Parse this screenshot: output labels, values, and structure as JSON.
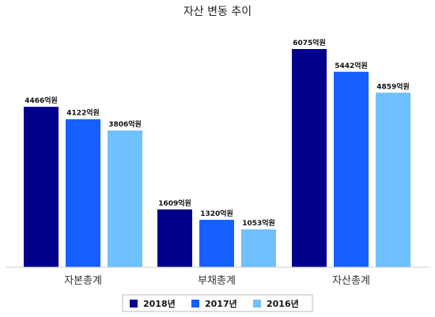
{
  "chart_data": {
    "type": "bar",
    "title": "자산 변동 추이",
    "categories": [
      "자본총계",
      "부채총계",
      "자산총계"
    ],
    "series": [
      {
        "name": "2018년",
        "values": [
          4466,
          1609,
          6075
        ],
        "labels": [
          "4466억원",
          "1609억원",
          "6075억원"
        ],
        "color": "#00008b"
      },
      {
        "name": "2017년",
        "values": [
          4122,
          1320,
          5442
        ],
        "labels": [
          "4122억원",
          "1320억원",
          "5442억원"
        ],
        "color": "#1560ff"
      },
      {
        "name": "2016년",
        "values": [
          3806,
          1053,
          4859
        ],
        "labels": [
          "3806억원",
          "1053억원",
          "4859억원"
        ],
        "color": "#6ec0ff"
      }
    ],
    "ylim": [
      0,
      7000
    ],
    "grid": false,
    "legend_position": "bottom-center"
  }
}
